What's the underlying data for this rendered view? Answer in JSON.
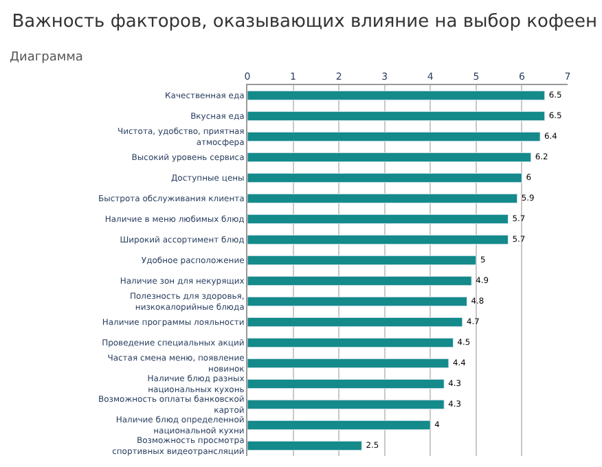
{
  "chart_data": {
    "type": "bar",
    "orientation": "horizontal",
    "title": "Важность факторов, оказывающих влияние на выбор кофеен",
    "annotations": [
      "Диаграмма"
    ],
    "categories": [
      "Качественная еда",
      "Вкусная еда",
      "Чистота, удобство, приятная атмосфера",
      "Высокий уровень сервиса",
      "Доступные цены",
      "Быстрота обслуживания клиента",
      "Наличие в меню любимых блюд",
      "Широкий ассортимент блюд",
      "Удобное расположение",
      "Наличие зон для некурящих",
      "Полезность для здоровья, низкокалорийные блюда",
      "Наличие программы лояльности",
      "Проведение специальных акций",
      "Частая смена меню, появление новинок",
      "Наличие блюд разных национальных кухонь",
      "Возможность оплаты банковской картой",
      "Наличие блюд определенной национальной кухни",
      "Возможность просмотра спортивных видеотрансляций"
    ],
    "values": [
      6.5,
      6.5,
      6.4,
      6.2,
      6,
      5.9,
      5.7,
      5.7,
      5,
      4.9,
      4.8,
      4.7,
      4.5,
      4.4,
      4.3,
      4.3,
      4,
      2.5
    ],
    "color": "#148a8a",
    "xlim": [
      0,
      7
    ],
    "xticks": [
      0,
      1,
      2,
      3,
      4,
      5,
      6,
      7
    ],
    "grid": "x",
    "data_labels": true
  }
}
